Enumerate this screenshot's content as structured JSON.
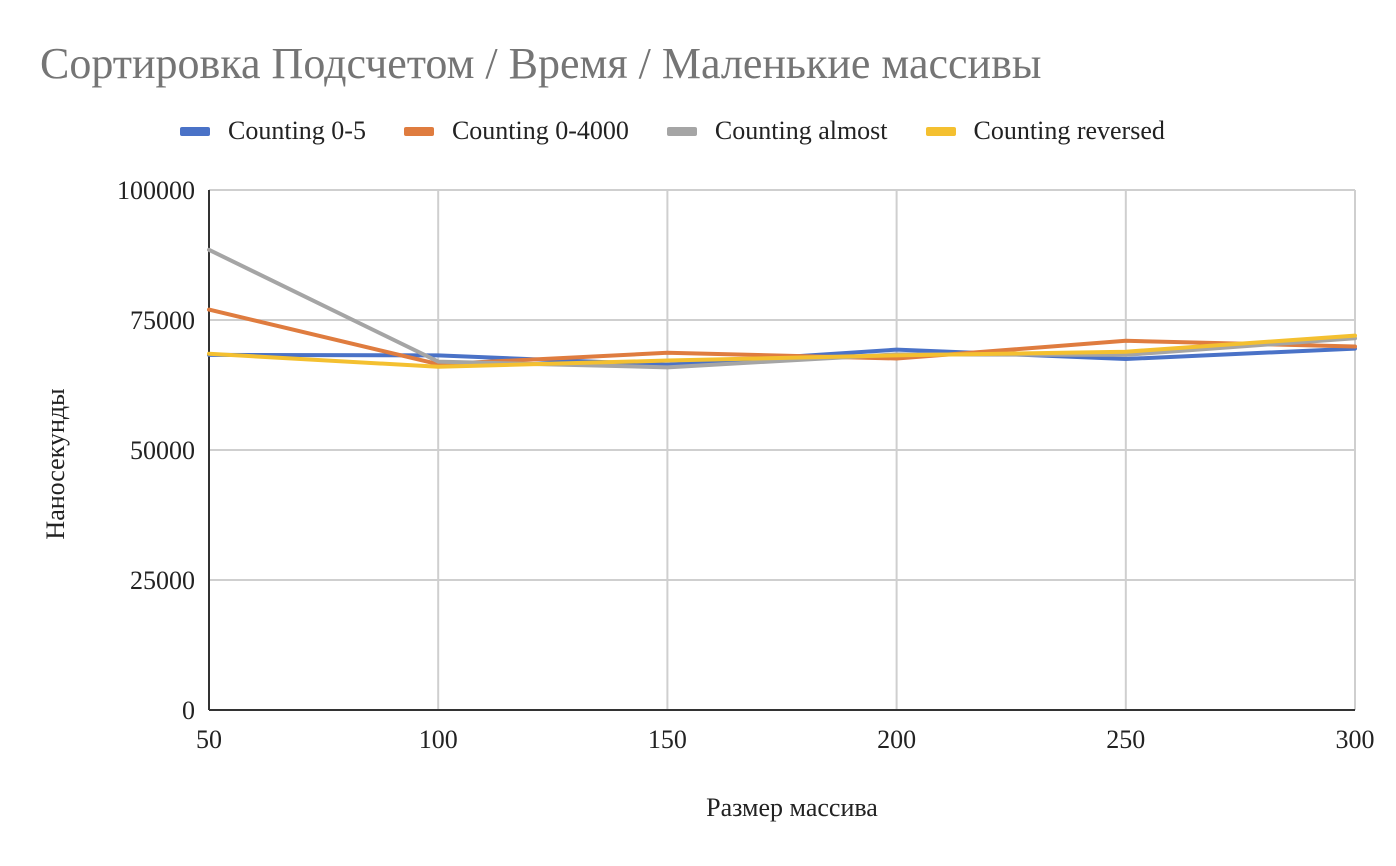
{
  "chart_data": {
    "type": "line",
    "title": "Сортировка Подсчетом / Время / Маленькие массивы",
    "xlabel": "Размер массива",
    "ylabel": "Наносекунды",
    "x": [
      50,
      100,
      150,
      200,
      250,
      300
    ],
    "xticks": [
      "50",
      "100",
      "150",
      "200",
      "250",
      "300"
    ],
    "yticks": [
      "0",
      "25000",
      "50000",
      "75000",
      "100000"
    ],
    "ylim": [
      0,
      100000
    ],
    "grid": true,
    "legend_position": "top",
    "series": [
      {
        "name": "Counting 0-5",
        "color": "#4a72c7",
        "values": [
          68300,
          68200,
          66400,
          69300,
          67500,
          69500
        ]
      },
      {
        "name": "Counting 0-4000",
        "color": "#df7c3f",
        "values": [
          77000,
          66500,
          68700,
          67600,
          71000,
          69900
        ]
      },
      {
        "name": "Counting almost",
        "color": "#a5a5a5",
        "values": [
          88500,
          67000,
          65900,
          68400,
          68300,
          71500
        ]
      },
      {
        "name": "Counting reversed",
        "color": "#f4c030",
        "values": [
          68500,
          66000,
          67200,
          68200,
          68900,
          72000
        ]
      }
    ]
  }
}
